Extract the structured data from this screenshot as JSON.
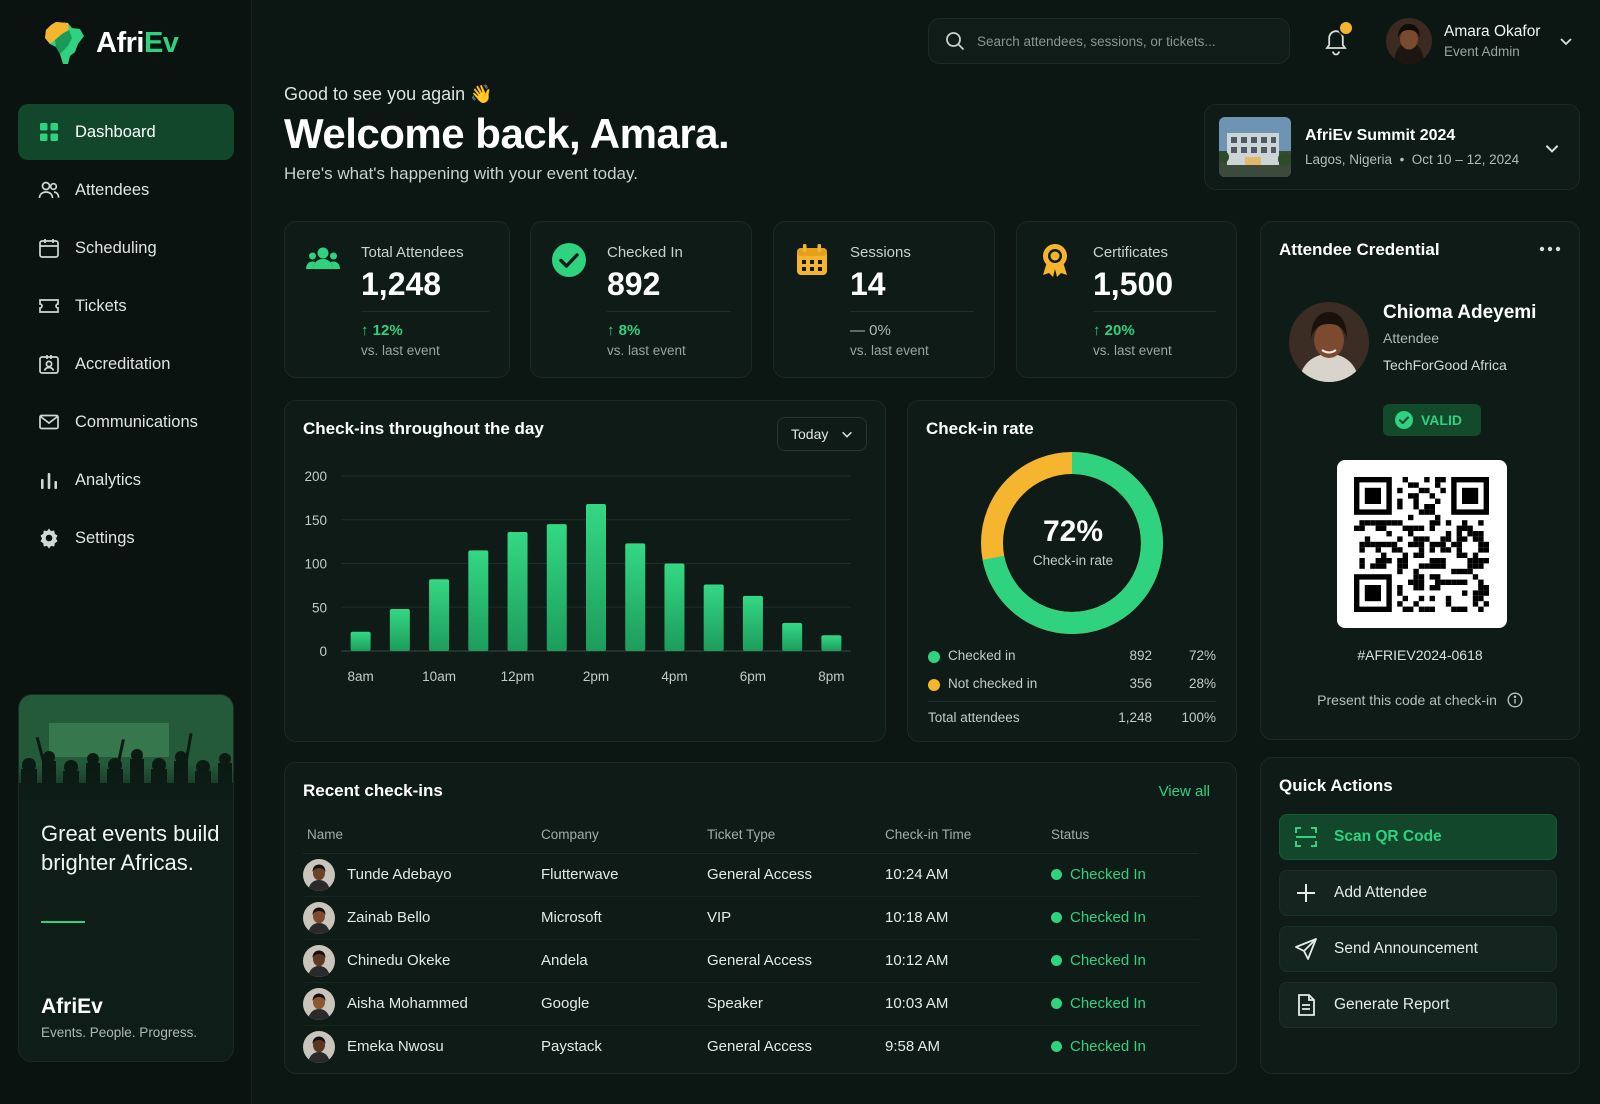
{
  "brand": {
    "name_part1": "Afri",
    "name_part2": "Ev"
  },
  "nav": [
    {
      "label": "Dashboard",
      "icon": "grid-icon",
      "active": true
    },
    {
      "label": "Attendees",
      "icon": "users-icon"
    },
    {
      "label": "Scheduling",
      "icon": "calendar-icon"
    },
    {
      "label": "Tickets",
      "icon": "ticket-icon"
    },
    {
      "label": "Accreditation",
      "icon": "badge-icon"
    },
    {
      "label": "Communications",
      "icon": "mail-icon"
    },
    {
      "label": "Analytics",
      "icon": "bar-chart-icon"
    },
    {
      "label": "Settings",
      "icon": "gear-icon"
    }
  ],
  "promo": {
    "title": "Great events build brighter Africas.",
    "brand": "AfriEv",
    "tagline": "Events. People. Progress."
  },
  "search": {
    "placeholder": "Search attendees, sessions, or tickets..."
  },
  "user": {
    "name": "Amara Okafor",
    "role": "Event Admin"
  },
  "greeting": {
    "small": "Good to see you again 👋",
    "title": "Welcome back, Amara.",
    "subtitle": "Here's what's happening with your event today."
  },
  "event": {
    "name": "AfriEv Summit 2024",
    "location": "Lagos, Nigeria",
    "dates": "Oct 10 – 12, 2024"
  },
  "stats": [
    {
      "label": "Total Attendees",
      "value": "1,248",
      "delta": "12%",
      "note": "vs. last event",
      "trend": "up"
    },
    {
      "label": "Checked In",
      "value": "892",
      "delta": "8%",
      "note": "vs. last event",
      "trend": "up"
    },
    {
      "label": "Sessions",
      "value": "14",
      "delta": "0%",
      "note": "vs. last event",
      "trend": "flat"
    },
    {
      "label": "Certificates",
      "value": "1,500",
      "delta": "20%",
      "note": "vs. last event",
      "trend": "up"
    }
  ],
  "checkins_chart": {
    "title": "Check-ins throughout the day",
    "range_label": "Today"
  },
  "chart_data": {
    "type": "bar",
    "x": [
      "8am",
      "9am",
      "10am",
      "11am",
      "12pm",
      "1pm",
      "2pm",
      "3pm",
      "4pm",
      "5pm",
      "6pm",
      "7pm",
      "8pm"
    ],
    "x_tick_labels": [
      "8am",
      "10am",
      "12pm",
      "2pm",
      "4pm",
      "6pm",
      "8pm"
    ],
    "values": [
      22,
      48,
      82,
      115,
      136,
      145,
      168,
      123,
      100,
      76,
      63,
      32,
      18
    ],
    "ylim": [
      0,
      200
    ],
    "y_ticks": [
      0,
      50,
      100,
      150,
      200
    ],
    "grid": true,
    "color": "#2fd27e"
  },
  "rate": {
    "title": "Check-in rate",
    "percent": "72%",
    "center_label": "Check-in rate",
    "checked_fraction": 0.72,
    "colors": {
      "checked": "#2fd27e",
      "not_checked": "#f5b52e"
    },
    "rows": [
      {
        "label": "Checked in",
        "num": "892",
        "pct": "72%"
      },
      {
        "label": "Not checked in",
        "num": "356",
        "pct": "28%"
      }
    ],
    "total": {
      "label": "Total attendees",
      "num": "1,248",
      "pct": "100%"
    }
  },
  "credential": {
    "title": "Attendee Credential",
    "name": "Chioma Adeyemi",
    "role": "Attendee",
    "org": "TechForGood Africa",
    "status": "VALID",
    "code": "#AFRIEV2024-0618",
    "hint": "Present this code at check-in"
  },
  "recent": {
    "title": "Recent check-ins",
    "view_all": "View all",
    "headers": [
      "Name",
      "Company",
      "Ticket Type",
      "Check-in Time",
      "Status"
    ],
    "rows": [
      {
        "name": "Tunde Adebayo",
        "company": "Flutterwave",
        "ticket": "General Access",
        "time": "10:24 AM",
        "status": "Checked In"
      },
      {
        "name": "Zainab Bello",
        "company": "Microsoft",
        "ticket": "VIP",
        "time": "10:18 AM",
        "status": "Checked In"
      },
      {
        "name": "Chinedu Okeke",
        "company": "Andela",
        "ticket": "General Access",
        "time": "10:12 AM",
        "status": "Checked In"
      },
      {
        "name": "Aisha Mohammed",
        "company": "Google",
        "ticket": "Speaker",
        "time": "10:03 AM",
        "status": "Checked In"
      },
      {
        "name": "Emeka Nwosu",
        "company": "Paystack",
        "ticket": "General Access",
        "time": "9:58 AM",
        "status": "Checked In"
      }
    ]
  },
  "quick_actions": {
    "title": "Quick Actions",
    "items": [
      {
        "label": "Scan QR Code",
        "icon": "scan-icon"
      },
      {
        "label": "Add Attendee",
        "icon": "plus-icon"
      },
      {
        "label": "Send Announcement",
        "icon": "send-icon"
      },
      {
        "label": "Generate Report",
        "icon": "document-icon"
      }
    ]
  },
  "colors": {
    "accent": "#2fd27e",
    "accent_dark": "#12472b",
    "warning": "#f5b52e",
    "bg": "#0c1613",
    "card": "#0f1b17"
  }
}
